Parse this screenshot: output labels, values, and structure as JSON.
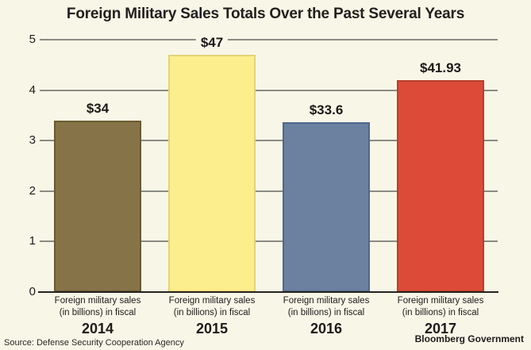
{
  "title": "Foreign Military Sales Totals Over the Past Several Years",
  "source": "Source: Defense Security Cooperation Agency",
  "attribution": "Bloomberg Government",
  "colors": {
    "background": "#f8f6e7",
    "gridline": "#8b8b84",
    "axis": "#26221d"
  },
  "chart_data": {
    "type": "bar",
    "title": "Foreign Military Sales Totals Over the Past Several Years",
    "categories": [
      "2014",
      "2015",
      "2016",
      "2017"
    ],
    "category_sublabel_line1": "Foreign military sales",
    "category_sublabel_line2": "(in billions) in fiscal",
    "values": [
      3.4,
      4.7,
      3.36,
      4.193
    ],
    "values_billions": [
      34,
      47,
      33.6,
      41.93
    ],
    "value_labels": [
      "$34",
      "$47",
      "$33.6",
      "$41.93"
    ],
    "bar_colors": [
      "#867347",
      "#fcee8d",
      "#6c81a0",
      "#dd4b38"
    ],
    "bar_border_colors": [
      "#6a5a34",
      "#e3d376",
      "#50678c",
      "#b93e2a"
    ],
    "ylim": [
      0,
      5
    ],
    "yticks": [
      0,
      1,
      2,
      3,
      4,
      5
    ],
    "grid": true,
    "legend": false,
    "xlabel": "",
    "ylabel": ""
  }
}
